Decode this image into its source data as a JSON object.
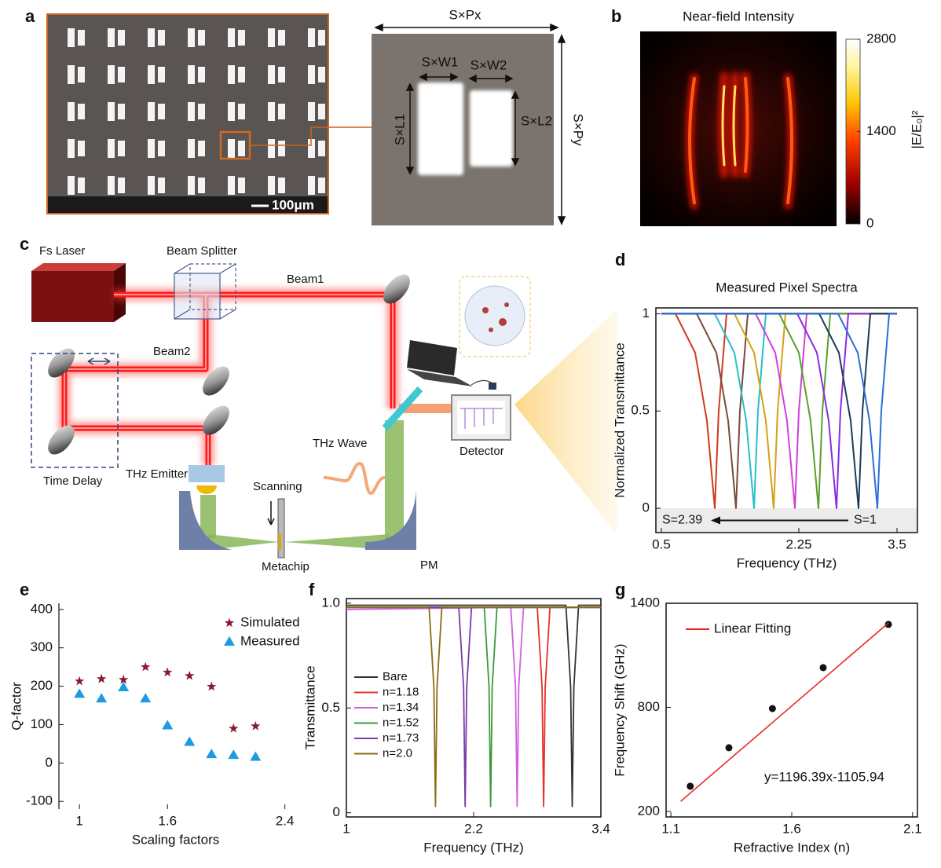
{
  "panel_labels": [
    "a",
    "b",
    "c",
    "d",
    "e",
    "f",
    "g"
  ],
  "panel_a": {
    "scale_bar": "100μm",
    "dimensions": {
      "px": "S×Px",
      "w1": "S×W1",
      "w2": "S×W2",
      "l1": "S×L1",
      "l2": "S×L2",
      "py": "S×Py"
    }
  },
  "panel_b": {
    "title": "Near-field Intensity",
    "colorbar": {
      "label": "|E/E₀|²",
      "range": [
        0,
        2800
      ],
      "ticks": [
        0,
        1400,
        2800
      ]
    }
  },
  "panel_c": {
    "labels": {
      "laser": "Fs Laser",
      "splitter": "Beam Splitter",
      "beam1": "Beam1",
      "beam2": "Beam2",
      "delay": "Time Delay",
      "emitter": "THz Emitter",
      "scanning": "Scanning",
      "metachip": "Metachip",
      "pm": "PM",
      "wave": "THz Wave",
      "detector": "Detector"
    }
  },
  "chart_data": [
    {
      "type": "line",
      "title": "Measured Pixel Spectra",
      "xlabel": "Frequency (THz)",
      "ylabel": "Normalized Transmittance",
      "xlim": [
        0.43,
        3.76
      ],
      "ylim": [
        -0.125,
        1.03
      ],
      "xticks": [
        0.5,
        2.25,
        3.5
      ],
      "yticks": [
        0,
        0.5,
        1
      ],
      "annotations": [
        "S=2.39",
        "S=1"
      ],
      "series": [
        {
          "color": "#d03a1c",
          "x": [
            0.5,
            0.68,
            0.93,
            1.08,
            1.18,
            1.23,
            1.33,
            3.5
          ],
          "values": [
            1,
            1,
            0.8,
            0.45,
            0,
            0.5,
            1,
            1
          ]
        },
        {
          "color": "#7a4a3a",
          "x": [
            0.5,
            0.95,
            1.2,
            1.35,
            1.45,
            1.5,
            1.6,
            3.5
          ],
          "values": [
            1,
            1,
            0.8,
            0.45,
            0,
            0.5,
            1,
            1
          ]
        },
        {
          "color": "#27c0c8",
          "x": [
            0.5,
            1.18,
            1.43,
            1.58,
            1.68,
            1.73,
            1.83,
            3.5
          ],
          "values": [
            1,
            1,
            0.8,
            0.45,
            0,
            0.5,
            1,
            1
          ]
        },
        {
          "color": "#d4a017",
          "x": [
            0.5,
            1.43,
            1.68,
            1.83,
            1.93,
            1.98,
            2.08,
            3.5
          ],
          "values": [
            1,
            1,
            0.8,
            0.45,
            0,
            0.5,
            1,
            1
          ]
        },
        {
          "color": "#d23fd9",
          "x": [
            0.5,
            1.7,
            1.95,
            2.1,
            2.2,
            2.25,
            2.35,
            3.5
          ],
          "values": [
            1,
            1,
            0.8,
            0.45,
            0,
            0.5,
            1,
            1
          ]
        },
        {
          "color": "#5aa02c",
          "x": [
            0.5,
            2.0,
            2.25,
            2.4,
            2.5,
            2.55,
            2.65,
            3.5
          ],
          "values": [
            1,
            1,
            0.8,
            0.45,
            0,
            0.5,
            1,
            1
          ]
        },
        {
          "color": "#8a2be2",
          "x": [
            0.5,
            2.23,
            2.48,
            2.63,
            2.73,
            2.78,
            2.88,
            3.5
          ],
          "values": [
            1,
            1,
            0.8,
            0.45,
            0,
            0.5,
            1,
            1
          ]
        },
        {
          "color": "#1f3b5a",
          "x": [
            0.5,
            2.51,
            2.76,
            2.91,
            3.01,
            3.06,
            3.16,
            3.5
          ],
          "values": [
            1,
            1,
            0.8,
            0.45,
            0,
            0.5,
            1,
            1
          ]
        },
        {
          "color": "#2a6fd6",
          "x": [
            0.5,
            2.75,
            3.0,
            3.15,
            3.25,
            3.3,
            3.4,
            3.5
          ],
          "values": [
            1,
            1,
            0.8,
            0.45,
            0,
            0.5,
            1,
            1
          ]
        }
      ]
    },
    {
      "type": "scatter",
      "xlabel": "Scaling factors",
      "ylabel": "Q-factor",
      "xlim": [
        0.86,
        2.45
      ],
      "ylim": [
        -120,
        416
      ],
      "xticks": [
        1,
        1.6,
        2.4
      ],
      "yticks": [
        400,
        300,
        200,
        100,
        0,
        -100
      ],
      "legend": "top-right",
      "series": [
        {
          "name": "Simulated",
          "color": "#8b1a2e",
          "marker": "star",
          "x": [
            1,
            1.15,
            1.3,
            1.45,
            1.6,
            1.75,
            1.9,
            2.05,
            2.2
          ],
          "values": [
            213,
            219,
            217,
            250,
            236,
            227,
            199,
            90,
            96
          ]
        },
        {
          "name": "Measured",
          "color": "#1e9be0",
          "marker": "triangle",
          "x": [
            1,
            1.15,
            1.3,
            1.45,
            1.6,
            1.75,
            1.9,
            2.05,
            2.2
          ],
          "values": [
            180,
            168,
            197,
            168,
            98,
            55,
            23,
            21,
            16
          ]
        }
      ]
    },
    {
      "type": "line",
      "xlabel": "Frequency (THz)",
      "ylabel": "Transmittance",
      "xlim": [
        1,
        3.4
      ],
      "ylim": [
        -0.02,
        1.022
      ],
      "xticks": [
        1,
        2.2,
        3.4
      ],
      "yticks": [
        0,
        0.5,
        {
          "value": 1,
          "label": "1.0"
        }
      ],
      "legend": "middle-left",
      "series": [
        {
          "name": "Bare",
          "color": "#333333",
          "x": [
            1,
            3.07,
            3.115,
            3.13,
            3.145,
            3.19,
            3.4
          ],
          "values": [
            0.99,
            0.99,
            0.6,
            0.03,
            0.6,
            0.99,
            0.99
          ]
        },
        {
          "name": "n=1.18",
          "color": "#e8302a",
          "x": [
            1,
            2.8,
            2.845,
            2.86,
            2.875,
            2.92,
            3.4
          ],
          "values": [
            0.98,
            0.98,
            0.6,
            0.03,
            0.6,
            0.98,
            0.98
          ]
        },
        {
          "name": "n=1.34",
          "color": "#d35ee0",
          "x": [
            1,
            2.55,
            2.595,
            2.61,
            2.625,
            2.67,
            3.4
          ],
          "values": [
            0.97,
            0.98,
            0.6,
            0.03,
            0.6,
            0.98,
            0.98
          ]
        },
        {
          "name": "n=1.52",
          "color": "#3a9a3a",
          "x": [
            1,
            2.3,
            2.345,
            2.36,
            2.375,
            2.42,
            3.4
          ],
          "values": [
            0.98,
            0.98,
            0.6,
            0.03,
            0.6,
            0.98,
            0.98
          ]
        },
        {
          "name": "n=1.73",
          "color": "#7a3aa8",
          "x": [
            1,
            2.06,
            2.105,
            2.12,
            2.135,
            2.18,
            3.4
          ],
          "values": [
            0.98,
            0.98,
            0.6,
            0.03,
            0.6,
            0.98,
            0.98
          ]
        },
        {
          "name": "n=2.0",
          "color": "#8b6b14",
          "x": [
            1,
            1.78,
            1.825,
            1.84,
            1.855,
            1.9,
            3.4
          ],
          "values": [
            0.98,
            0.98,
            0.6,
            0.03,
            0.6,
            0.98,
            0.98
          ]
        }
      ]
    },
    {
      "type": "scatter",
      "xlabel": "Refractive Index (n)",
      "ylabel": "Frequency Shift (GHz)",
      "xlim": [
        1.08,
        2.12
      ],
      "ylim": [
        168,
        1400
      ],
      "xticks": [
        1.1,
        1.6,
        2.1
      ],
      "yticks": [
        200,
        800,
        1400
      ],
      "legend": "top-left",
      "annotation": "y=1196.39x-1105.94",
      "series": [
        {
          "color": "#111111",
          "marker": "circle",
          "x": [
            1.18,
            1.34,
            1.52,
            1.73,
            2.0
          ],
          "values": [
            345,
            567,
            793,
            1029,
            1278
          ]
        },
        {
          "name": "Linear Fitting",
          "type": "line",
          "color": "#e82020",
          "x": [
            1.14,
            2.0
          ],
          "values": [
            257.9,
            1286.8
          ]
        }
      ]
    }
  ]
}
